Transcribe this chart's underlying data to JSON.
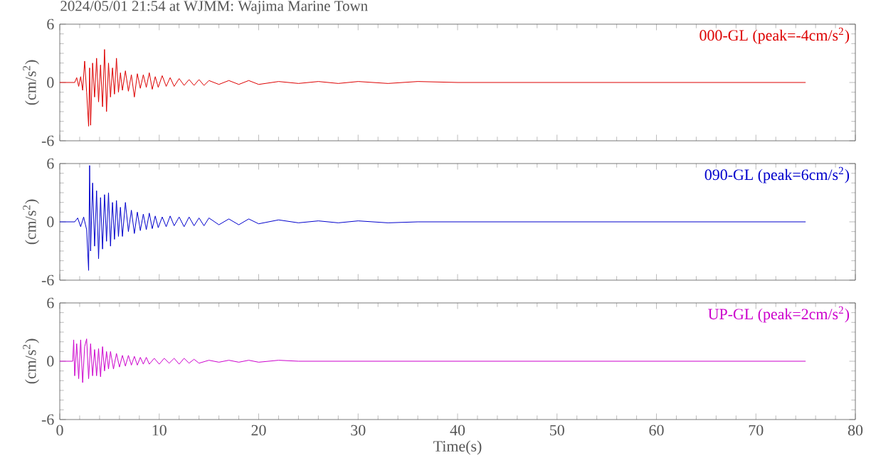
{
  "chart_data": [
    {
      "type": "line",
      "title": "2024/05/01 21:54 at WJMM: Wajima Marine Town",
      "ylabel": "(cm/s$^{2}$)",
      "xlim": [
        0,
        80
      ],
      "ylim": [
        -6,
        6
      ],
      "xticks": [
        0,
        10,
        20,
        30,
        40,
        50,
        60,
        70,
        80
      ],
      "yticks": [
        -6,
        0,
        6
      ],
      "tick_labels": "y",
      "series": [
        {
          "name": "000-GL (peak=-4cm/s$^{2}$)",
          "color": "#dd0000",
          "x": [
            0,
            1.5,
            1.7,
            1.9,
            2.1,
            2.3,
            2.5,
            2.7,
            2.9,
            3.0,
            3.1,
            3.3,
            3.5,
            3.7,
            3.9,
            4.1,
            4.3,
            4.5,
            4.7,
            4.9,
            5.1,
            5.3,
            5.5,
            5.7,
            5.9,
            6.1,
            6.3,
            6.6,
            6.9,
            7.2,
            7.5,
            7.8,
            8.1,
            8.4,
            8.7,
            9.0,
            9.3,
            9.6,
            9.9,
            10.3,
            10.7,
            11.1,
            11.5,
            12,
            12.5,
            13,
            13.5,
            14,
            14.5,
            15,
            16,
            17,
            18,
            19,
            20,
            22,
            24,
            26,
            28,
            30,
            33,
            36,
            40,
            45,
            50,
            55,
            60,
            65,
            70,
            75
          ],
          "values": [
            0,
            0,
            0.5,
            -0.4,
            0.6,
            -0.8,
            2.2,
            -1.0,
            -4.5,
            1.5,
            -4.4,
            2.0,
            -1.5,
            2.5,
            -2.0,
            1.8,
            -2.5,
            3.4,
            -3.0,
            2.0,
            -1.5,
            1.5,
            -1.2,
            2.5,
            -1.0,
            1.0,
            -0.8,
            1.2,
            -0.9,
            0.8,
            -1.5,
            0.9,
            -0.6,
            0.8,
            -0.5,
            1.0,
            -0.7,
            0.6,
            -0.5,
            0.7,
            -0.4,
            0.5,
            -0.4,
            0.4,
            -0.3,
            0.3,
            -0.3,
            0.3,
            -0.3,
            0.2,
            -0.2,
            0.2,
            -0.2,
            0.2,
            -0.2,
            0.1,
            -0.1,
            0.1,
            -0.1,
            0.1,
            -0.1,
            0.1,
            0,
            0,
            0,
            0,
            0,
            0,
            0,
            0
          ]
        }
      ]
    },
    {
      "type": "line",
      "ylabel": "(cm/s$^{2}$)",
      "xlim": [
        0,
        80
      ],
      "ylim": [
        -6,
        6
      ],
      "xticks": [
        0,
        10,
        20,
        30,
        40,
        50,
        60,
        70,
        80
      ],
      "yticks": [
        -6,
        0,
        6
      ],
      "tick_labels": "y",
      "series": [
        {
          "name": "090-GL (peak=6cm/s$^{2}$)",
          "color": "#0000cc",
          "x": [
            0,
            1.5,
            1.8,
            2.1,
            2.4,
            2.7,
            2.9,
            3.0,
            3.1,
            3.3,
            3.5,
            3.7,
            3.9,
            4.1,
            4.3,
            4.5,
            4.7,
            4.9,
            5.1,
            5.3,
            5.5,
            5.7,
            5.9,
            6.1,
            6.3,
            6.6,
            6.9,
            7.2,
            7.5,
            7.8,
            8.1,
            8.4,
            8.7,
            9.0,
            9.3,
            9.6,
            9.9,
            10.3,
            10.7,
            11.1,
            11.5,
            12,
            12.5,
            13,
            13.5,
            14,
            14.5,
            15,
            16,
            17,
            18,
            19,
            20,
            22,
            24,
            26,
            28,
            30,
            33,
            36,
            40,
            45,
            50,
            55,
            60,
            65,
            70,
            75
          ],
          "values": [
            0,
            0,
            0.4,
            -0.5,
            0.5,
            -0.8,
            -5.0,
            5.8,
            -3.0,
            4.0,
            -2.5,
            3.2,
            -3.8,
            2.5,
            -2.8,
            2.8,
            -2.0,
            3.0,
            -2.5,
            2.0,
            -1.8,
            2.2,
            -1.5,
            1.5,
            -1.5,
            2.0,
            -1.0,
            1.2,
            -1.2,
            1.0,
            -0.9,
            0.8,
            -0.8,
            0.9,
            -0.7,
            0.6,
            -0.6,
            0.5,
            -0.5,
            0.6,
            -0.4,
            0.5,
            -0.5,
            0.5,
            -0.4,
            0.4,
            -0.4,
            0.4,
            -0.3,
            0.3,
            -0.3,
            0.3,
            -0.2,
            0.2,
            -0.1,
            0.1,
            -0.1,
            0.1,
            -0.1,
            0,
            0,
            0,
            0,
            0,
            0,
            0,
            0,
            0
          ]
        }
      ]
    },
    {
      "type": "line",
      "ylabel": "(cm/s$^{2}$)",
      "xlabel": "Time(s)",
      "xlim": [
        0,
        80
      ],
      "ylim": [
        -6,
        6
      ],
      "xticks": [
        0,
        10,
        20,
        30,
        40,
        50,
        60,
        70,
        80
      ],
      "yticks": [
        -6,
        0,
        6
      ],
      "series": [
        {
          "name": "UP-GL (peak=2cm/s$^{2}$)",
          "color": "#cc00cc",
          "x": [
            0,
            1.3,
            1.4,
            1.5,
            1.7,
            1.9,
            2.1,
            2.3,
            2.5,
            2.7,
            2.9,
            3.1,
            3.3,
            3.5,
            3.7,
            3.9,
            4.1,
            4.3,
            4.5,
            4.7,
            4.9,
            5.1,
            5.4,
            5.7,
            6.0,
            6.3,
            6.6,
            6.9,
            7.2,
            7.5,
            7.8,
            8.1,
            8.4,
            8.7,
            9.0,
            9.5,
            10,
            10.5,
            11,
            11.5,
            12,
            12.5,
            13,
            13.5,
            14,
            15,
            16,
            17,
            18,
            19,
            20,
            22,
            24,
            26,
            30,
            35,
            40,
            50,
            60,
            75
          ],
          "values": [
            0,
            0,
            2.2,
            -1.5,
            1.8,
            -1.8,
            2.2,
            -2.2,
            1.5,
            2.3,
            -1.8,
            1.8,
            -1.5,
            1.2,
            -1.5,
            1.3,
            -1.6,
            1.5,
            -1.0,
            1.0,
            -0.8,
            1.0,
            -0.8,
            0.8,
            -0.6,
            0.6,
            -0.5,
            0.6,
            -0.4,
            0.5,
            -0.4,
            0.4,
            -0.3,
            0.4,
            -0.3,
            0.3,
            -0.3,
            0.3,
            -0.2,
            0.3,
            -0.3,
            0.3,
            -0.2,
            0.2,
            -0.2,
            0.1,
            -0.1,
            0.1,
            -0.1,
            0.1,
            -0.1,
            0.1,
            0,
            0,
            0,
            0,
            0,
            0,
            0,
            0
          ]
        }
      ]
    }
  ]
}
